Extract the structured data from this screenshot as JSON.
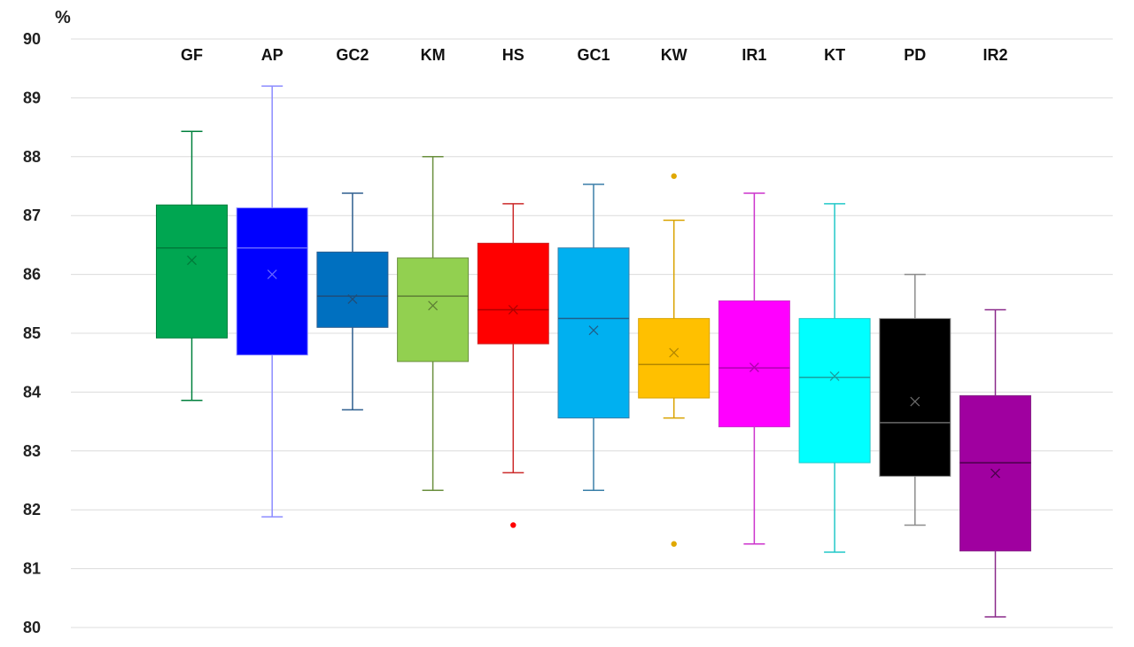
{
  "chart_data": {
    "type": "boxplot",
    "title": "",
    "xlabel": "",
    "ylabel": "%",
    "ylim": [
      80,
      90
    ],
    "yticks": [
      80,
      81,
      82,
      83,
      84,
      85,
      86,
      87,
      88,
      89,
      90
    ],
    "yticklabels": [
      "80",
      "81",
      "82",
      "83",
      "84",
      "85",
      "86",
      "87",
      "88",
      "89",
      "90"
    ],
    "grid": true,
    "categories": [
      "GF",
      "AP",
      "GC2",
      "KM",
      "HS",
      "GC1",
      "KW",
      "IR1",
      "KT",
      "PD",
      "IR2"
    ],
    "boxes": [
      {
        "name": "GF",
        "color": "#00A651",
        "line": "#00803D",
        "median_color": "#007A3A",
        "min": 83.86,
        "q1": 84.92,
        "median": 86.45,
        "q3": 87.18,
        "max": 88.43,
        "mean": 86.24,
        "outliers": []
      },
      {
        "name": "AP",
        "color": "#0000FF",
        "line": "#8C8CFF",
        "median_color": "#6666FF",
        "min": 81.88,
        "q1": 84.63,
        "median": 86.45,
        "q3": 87.13,
        "max": 89.2,
        "mean": 86.0,
        "outliers": []
      },
      {
        "name": "GC2",
        "color": "#0070C0",
        "line": "#2F5F8F",
        "median_color": "#1F4E79",
        "min": 83.7,
        "q1": 85.1,
        "median": 85.63,
        "q3": 86.38,
        "max": 87.38,
        "mean": 85.58,
        "outliers": []
      },
      {
        "name": "KM",
        "color": "#92D050",
        "line": "#6A8F3E",
        "median_color": "#5E7F35",
        "min": 82.33,
        "q1": 84.52,
        "median": 85.63,
        "q3": 86.28,
        "max": 88.0,
        "mean": 85.47,
        "outliers": []
      },
      {
        "name": "HS",
        "color": "#FF0000",
        "line": "#CC2A2A",
        "median_color": "#B00000",
        "min": 82.63,
        "q1": 84.82,
        "median": 85.4,
        "q3": 86.53,
        "max": 87.2,
        "mean": 85.4,
        "outliers": [
          81.74
        ]
      },
      {
        "name": "GC1",
        "color": "#00B0F0",
        "line": "#3A7FA8",
        "median_color": "#1F5F8A",
        "min": 82.33,
        "q1": 83.56,
        "median": 85.25,
        "q3": 86.45,
        "max": 87.53,
        "mean": 85.05,
        "outliers": []
      },
      {
        "name": "KW",
        "color": "#FFC000",
        "line": "#D9A300",
        "median_color": "#B38700",
        "min": 83.56,
        "q1": 83.9,
        "median": 84.47,
        "q3": 85.25,
        "max": 86.92,
        "mean": 84.67,
        "outliers": [
          87.67,
          81.42
        ]
      },
      {
        "name": "IR1",
        "color": "#FF00FF",
        "line": "#CC33CC",
        "median_color": "#B000B0",
        "min": 81.42,
        "q1": 83.41,
        "median": 84.41,
        "q3": 85.55,
        "max": 87.38,
        "mean": 84.42,
        "outliers": []
      },
      {
        "name": "KT",
        "color": "#00FFFF",
        "line": "#22C8C8",
        "median_color": "#18A0A0",
        "min": 81.28,
        "q1": 82.8,
        "median": 84.25,
        "q3": 85.25,
        "max": 87.2,
        "mean": 84.27,
        "outliers": []
      },
      {
        "name": "PD",
        "color": "#000000",
        "line": "#8C8C8C",
        "median_color": "#6A6A6A",
        "min": 81.74,
        "q1": 82.57,
        "median": 83.48,
        "q3": 85.25,
        "max": 86.0,
        "mean": 83.84,
        "outliers": []
      },
      {
        "name": "IR2",
        "color": "#A000A0",
        "line": "#8A2A8A",
        "median_color": "#4A004A",
        "min": 80.18,
        "q1": 81.3,
        "median": 82.8,
        "q3": 83.94,
        "max": 85.4,
        "mean": 82.62,
        "outliers": []
      }
    ]
  }
}
